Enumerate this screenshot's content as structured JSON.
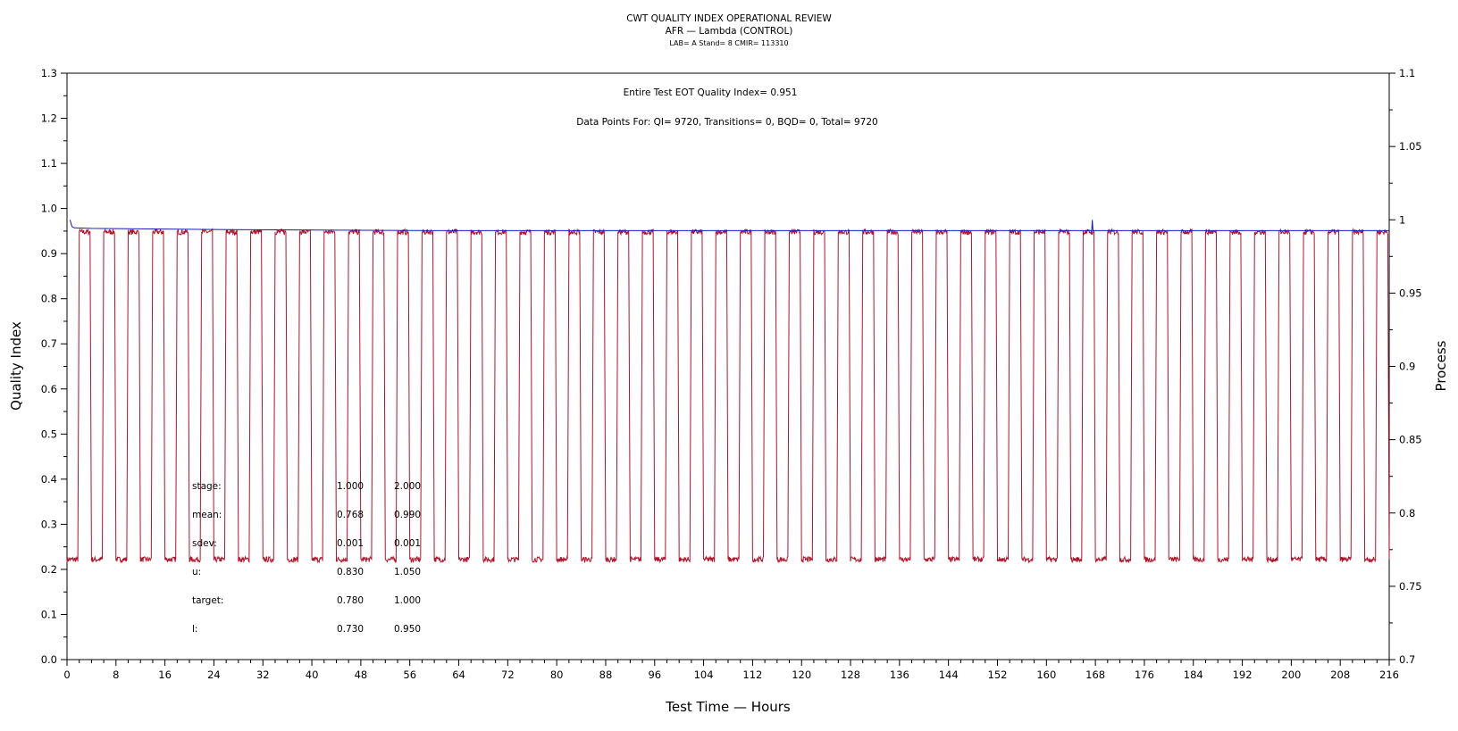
{
  "chart_data": {
    "type": "line",
    "title": "CWT QUALITY INDEX OPERATIONAL REVIEW",
    "subtitle": "AFR — Lambda (CONTROL)",
    "subsubtitle": "LAB= A Stand= 8 CMIR= 113310",
    "xlabel": "Test Time — Hours",
    "ylabel": "Quality Index",
    "y2label": "Process",
    "xlim": [
      0,
      216
    ],
    "ylim": [
      0.0,
      1.3
    ],
    "y2lim": [
      0.7,
      1.1
    ],
    "xticks": [
      "0",
      "8",
      "16",
      "24",
      "32",
      "40",
      "48",
      "56",
      "64",
      "72",
      "80",
      "88",
      "96",
      "104",
      "112",
      "120",
      "128",
      "136",
      "144",
      "152",
      "160",
      "168",
      "176",
      "184",
      "192",
      "200",
      "208",
      "216"
    ],
    "yticks": [
      "0.0",
      "0.1",
      "0.2",
      "0.3",
      "0.4",
      "0.5",
      "0.6",
      "0.7",
      "0.8",
      "0.9",
      "1.0",
      "1.1",
      "1.2",
      "1.3"
    ],
    "y2ticks": [
      "0.7",
      "0.75",
      "0.8",
      "0.85",
      "0.9",
      "0.95",
      "1",
      "1.05",
      "1.1"
    ],
    "annotations": [
      "Entire Test EOT Quality Index=  0.951",
      "Data Points For: QI=  9720, Transitions=     0, BQD=     0, Total=  9720"
    ],
    "series": [
      {
        "axis": "left",
        "color": "#b0142c",
        "kind": "cycle",
        "start_x": 0.0,
        "period_hours": 4.0,
        "low_value": 0.222,
        "high_value": 0.948,
        "low_fraction": 0.5
      },
      {
        "axis": "left",
        "color": "#1a1ab4",
        "kind": "polyline",
        "points": [
          [
            0.5,
            0.975
          ],
          [
            0.8,
            0.96
          ],
          [
            1.2,
            0.957
          ],
          [
            4,
            0.956
          ],
          [
            12,
            0.955
          ],
          [
            20,
            0.954
          ],
          [
            30,
            0.953
          ],
          [
            60,
            0.951
          ],
          [
            100,
            0.951
          ],
          [
            167.4,
            0.951
          ],
          [
            167.5,
            0.975
          ],
          [
            167.6,
            0.951
          ],
          [
            216,
            0.951
          ]
        ]
      }
    ],
    "stats_table": {
      "rows": [
        {
          "label": "stage:",
          "v1": "1.000",
          "v2": "2.000"
        },
        {
          "label": "mean:",
          "v1": "0.768",
          "v2": "0.990"
        },
        {
          "label": "sdev:",
          "v1": "0.001",
          "v2": "0.001"
        },
        {
          "label": "u:",
          "v1": "0.830",
          "v2": "1.050"
        },
        {
          "label": "target:",
          "v1": "0.780",
          "v2": "1.000"
        },
        {
          "label": "l:",
          "v1": "0.730",
          "v2": "0.950"
        }
      ]
    },
    "grid": false
  }
}
